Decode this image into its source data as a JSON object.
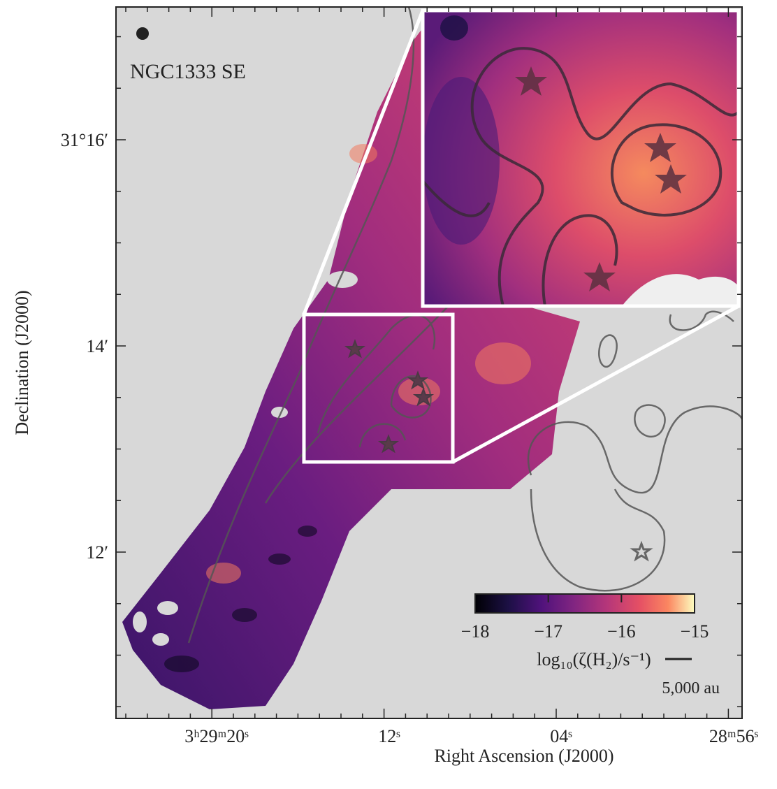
{
  "region_label": "NGC1333 SE",
  "x_axis": {
    "title": "Right Ascension (J2000)",
    "tick_labels": [
      "3ʰ29ᵐ20ˢ",
      "12ˢ",
      "04ˢ",
      "28ᵐ56ˢ"
    ]
  },
  "y_axis": {
    "title": "Declination (J2000)",
    "tick_labels": [
      "31°16′",
      "14′",
      "12′"
    ]
  },
  "colorbar": {
    "label": "log₁₀(ζ(H₂)/s⁻¹)",
    "range": [
      -18,
      -15
    ],
    "ticks": [
      {
        "value": -18,
        "label": "−18"
      },
      {
        "value": -17,
        "label": "−17"
      },
      {
        "value": -16,
        "label": "−16"
      },
      {
        "value": -15,
        "label": "−15"
      }
    ]
  },
  "scale_bar": "5,000 au"
}
